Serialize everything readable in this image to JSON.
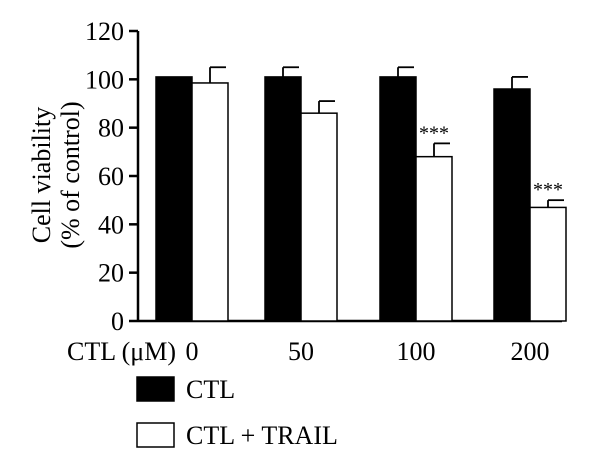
{
  "chart_data": {
    "type": "bar",
    "categories": [
      "0",
      "50",
      "100",
      "200"
    ],
    "x_prefix_label": "CTL (μM)",
    "ylabel_line1": "Cell viability",
    "ylabel_line2": "(% of control)",
    "ylim": [
      0,
      120
    ],
    "yticks": [
      0,
      20,
      40,
      60,
      80,
      100,
      120
    ],
    "grid": false,
    "legend_position": "bottom-left",
    "series": [
      {
        "name": "CTL",
        "fill": "#000000",
        "values": [
          101,
          101,
          101,
          96
        ],
        "errors": [
          0,
          4,
          4,
          5
        ]
      },
      {
        "name": "CTL + TRAIL",
        "fill": "#ffffff",
        "values": [
          98.5,
          86,
          68,
          47
        ],
        "errors": [
          6.5,
          5,
          5.5,
          3
        ]
      }
    ],
    "annotations": [
      {
        "series": 1,
        "category": 2,
        "text": "***"
      },
      {
        "series": 1,
        "category": 3,
        "text": "***"
      }
    ]
  }
}
